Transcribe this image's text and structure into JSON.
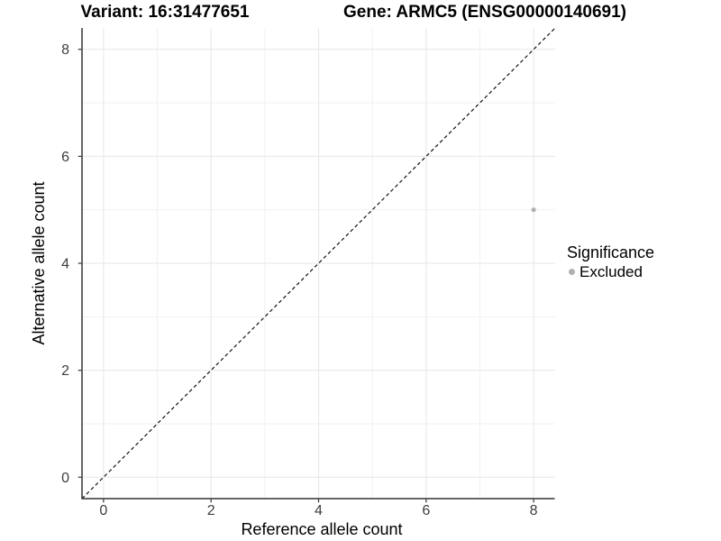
{
  "chart_data": {
    "type": "scatter",
    "title_left": "Variant: 16:31477651",
    "title_right": "Gene: ARMC5 (ENSG00000140691)",
    "xlabel": "Reference allele count",
    "ylabel": "Alternative allele count",
    "xlim": [
      -0.4,
      8.4
    ],
    "ylim": [
      -0.4,
      8.4
    ],
    "x_major_ticks": [
      0,
      2,
      4,
      6,
      8
    ],
    "y_major_ticks": [
      0,
      2,
      4,
      6,
      8
    ],
    "x_minor_gridlines": [
      1,
      3,
      5,
      7
    ],
    "y_minor_gridlines": [
      1,
      3,
      5,
      7
    ],
    "grid": "major+minor",
    "identity_line": {
      "slope": 1,
      "intercept": 0,
      "style": "dashed"
    },
    "series": [
      {
        "name": "Excluded",
        "color": "#b0b0b0",
        "points": [
          {
            "x": 8,
            "y": 5
          }
        ]
      }
    ],
    "legend": {
      "title": "Significance",
      "position": "right",
      "items": [
        {
          "label": "Excluded",
          "color": "#b0b0b0"
        }
      ]
    },
    "colors": {
      "background": "#ffffff",
      "grid_major": "#e6e6e6",
      "grid_minor": "#f1f1f1",
      "axis_line": "#333333",
      "tick_mark": "#333333",
      "tick_label": "#3d3d3d",
      "text": "#000000",
      "point": "#b0b0b0",
      "identity_line": "#111111"
    }
  }
}
